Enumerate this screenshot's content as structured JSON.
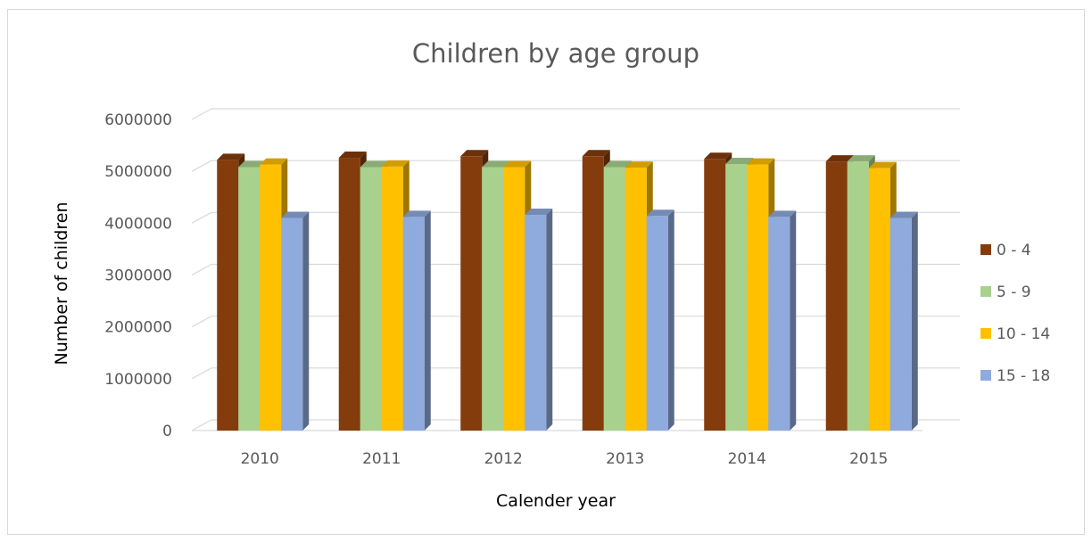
{
  "chart_data": {
    "type": "bar",
    "title": "Children by age group",
    "xlabel": "Calender year",
    "ylabel": "Number of children",
    "ylim": [
      0,
      6000000
    ],
    "yticks": [
      "0",
      "1000000",
      "2000000",
      "3000000",
      "4000000",
      "5000000",
      "6000000"
    ],
    "categories": [
      "2010",
      "2011",
      "2012",
      "2013",
      "2014",
      "2015"
    ],
    "series": [
      {
        "name": "0 - 4",
        "color": "#843c0c",
        "values": [
          5220000,
          5260000,
          5290000,
          5290000,
          5240000,
          5190000
        ]
      },
      {
        "name": "5 - 9",
        "color": "#a9d18e",
        "values": [
          5080000,
          5080000,
          5080000,
          5080000,
          5140000,
          5190000
        ]
      },
      {
        "name": "10 - 14",
        "color": "#ffc000",
        "values": [
          5130000,
          5090000,
          5080000,
          5070000,
          5130000,
          5060000
        ]
      },
      {
        "name": "15 - 18",
        "color": "#8faadc",
        "values": [
          4100000,
          4120000,
          4160000,
          4140000,
          4120000,
          4100000
        ]
      }
    ],
    "grid": true,
    "legend": "right",
    "style": "3d-clustered-column"
  }
}
